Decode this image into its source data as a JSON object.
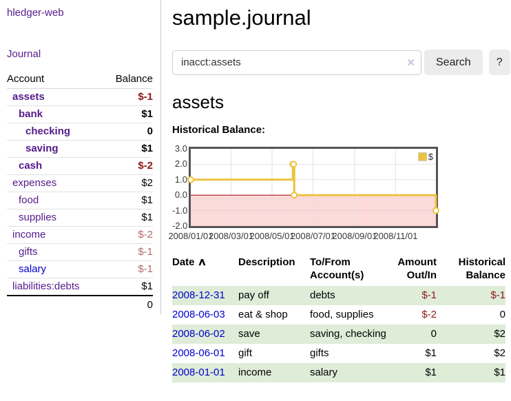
{
  "app": {
    "title": "hledger-web"
  },
  "sidebar": {
    "journal_link": "Journal",
    "accounts_table": {
      "headers": [
        "Account",
        "Balance"
      ],
      "rows": [
        {
          "name": "assets",
          "balance": "$-1"
        },
        {
          "name": "bank",
          "balance": "$1"
        },
        {
          "name": "checking",
          "balance": "0"
        },
        {
          "name": "saving",
          "balance": "$1"
        },
        {
          "name": "cash",
          "balance": "$-2"
        },
        {
          "name": "expenses",
          "balance": "$2"
        },
        {
          "name": "food",
          "balance": "$1"
        },
        {
          "name": "supplies",
          "balance": "$1"
        },
        {
          "name": "income",
          "balance": "$-2"
        },
        {
          "name": "gifts",
          "balance": "$-1"
        },
        {
          "name": "salary",
          "balance": "$-1"
        },
        {
          "name": "liabilities:debts",
          "balance": "$1"
        }
      ],
      "total": "0"
    }
  },
  "main": {
    "title": "sample.journal",
    "search": {
      "value": "inacct:assets",
      "clear_icon": "✕",
      "button_label": "Search",
      "help_label": "?"
    },
    "account_heading": "assets",
    "chart_label": "Historical Balance:"
  },
  "chart_data": {
    "type": "line",
    "title": "Historical Balance:",
    "steps": true,
    "series": [
      {
        "name": "$",
        "color": "#edc240",
        "points": [
          [
            "2008-01-01",
            1
          ],
          [
            "2008-06-01",
            2
          ],
          [
            "2008-06-02",
            2
          ],
          [
            "2008-06-03",
            0
          ],
          [
            "2008-12-31",
            -1
          ]
        ]
      }
    ],
    "x_range": [
      "2008-01-01",
      "2008-12-31"
    ],
    "y_range": [
      -2,
      3
    ],
    "x_tick_dates": [
      "2008-01-01",
      "2008-03-01",
      "2008-05-01",
      "2008-07-01",
      "2008-09-01",
      "2008-11-01"
    ],
    "x_tick_labels": [
      "2008/01/01",
      "2008/03/01",
      "2008/05/01",
      "2008/07/01",
      "2008/09/01",
      "2008/11/01"
    ],
    "y_ticks": [
      3,
      2,
      1,
      0,
      -1,
      -2
    ],
    "y_tick_labels": [
      "3.0",
      "2.0",
      "1.0",
      "0.0",
      "-1.0",
      "-2.0"
    ],
    "legend_label": "$",
    "grid": true,
    "legend_position": "top-right",
    "negative_region_color": "#fcdada",
    "zero_line_color": "#a40000",
    "gridline_color": "#e2e2e2"
  },
  "register": {
    "headers": {
      "date": "Date",
      "sort_icon": "∧",
      "description": "Description",
      "accounts": "To/From Account(s)",
      "amount": "Amount Out/In",
      "balance": "Historical Balance"
    },
    "rows": [
      {
        "date": "2008-12-31",
        "description": "pay off",
        "accounts": "debts",
        "amount": "$-1",
        "balance": "$-1"
      },
      {
        "date": "2008-06-03",
        "description": "eat & shop",
        "accounts": "food, supplies",
        "amount": "$-2",
        "balance": "0"
      },
      {
        "date": "2008-06-02",
        "description": "save",
        "accounts": "saving, checking",
        "amount": "0",
        "balance": "$2"
      },
      {
        "date": "2008-06-01",
        "description": "gift",
        "accounts": "gifts",
        "amount": "$1",
        "balance": "$2"
      },
      {
        "date": "2008-01-01",
        "description": "income",
        "accounts": "salary",
        "amount": "$1",
        "balance": "$1"
      }
    ]
  }
}
